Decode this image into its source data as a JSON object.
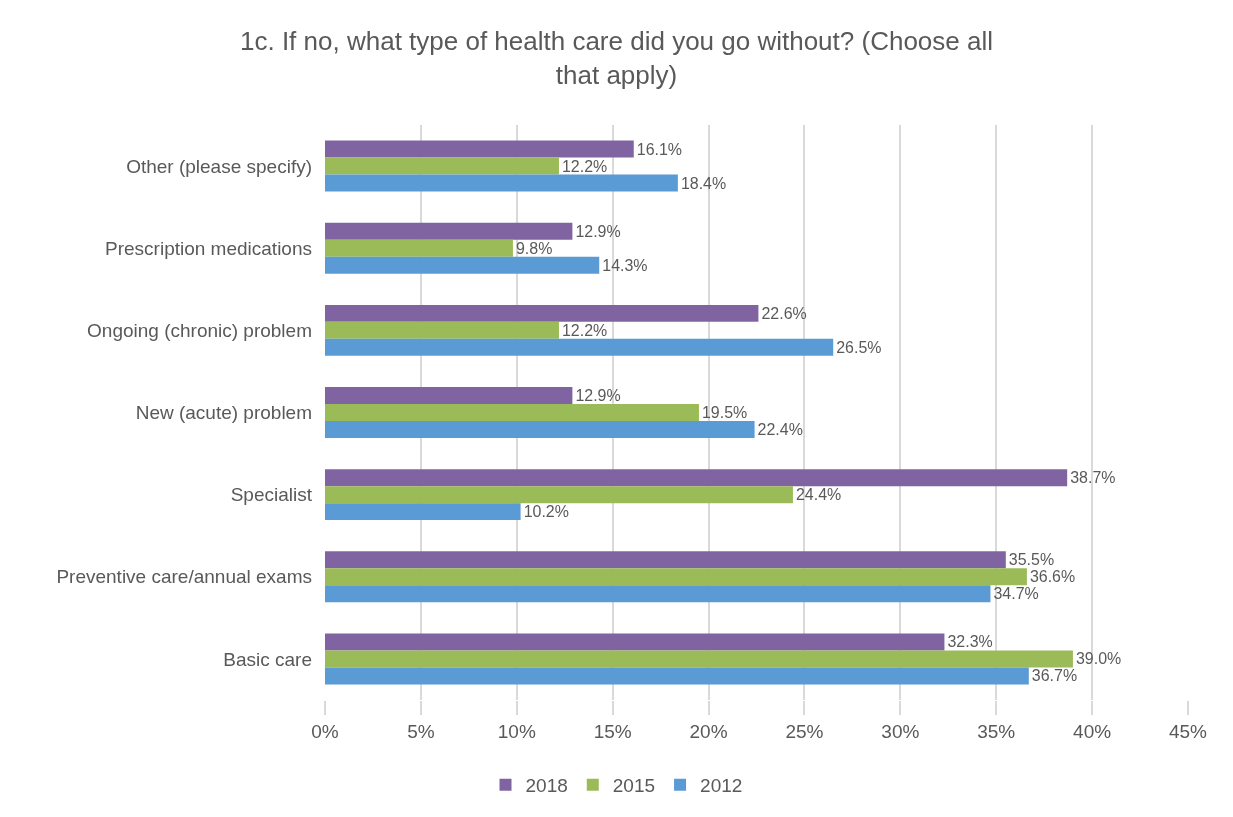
{
  "chart_data": {
    "type": "bar",
    "orientation": "horizontal",
    "title": "1c. If no, what type of health care did you go without? (Choose all that apply)",
    "categories": [
      "Other (please specify)",
      "Prescription medications",
      "Ongoing (chronic) problem",
      "New (acute) problem",
      "Specialist",
      "Preventive care/annual exams",
      "Basic care"
    ],
    "series": [
      {
        "name": "2018",
        "color": "#8064a2",
        "values": [
          16.1,
          12.9,
          22.6,
          12.9,
          38.7,
          35.5,
          32.3
        ],
        "value_labels": [
          "16.1%",
          "12.9%",
          "22.6%",
          "12.9%",
          "38.7%",
          "35.5%",
          "32.3%"
        ]
      },
      {
        "name": "2015",
        "color": "#9bbb59",
        "values": [
          12.2,
          9.8,
          12.2,
          19.5,
          24.4,
          36.6,
          39.0
        ],
        "value_labels": [
          "12.2%",
          "9.8%",
          "12.2%",
          "19.5%",
          "24.4%",
          "36.6%",
          "39.0%"
        ]
      },
      {
        "name": "2012",
        "color": "#5b9bd5",
        "values": [
          18.4,
          14.3,
          26.5,
          22.4,
          10.2,
          34.7,
          36.7
        ],
        "value_labels": [
          "18.4%",
          "14.3%",
          "26.5%",
          "22.4%",
          "10.2%",
          "34.7%",
          "36.7%"
        ]
      }
    ],
    "xlim": [
      0,
      45
    ],
    "xticks": [
      {
        "value": 0,
        "label": "0%"
      },
      {
        "value": 5,
        "label": "5%"
      },
      {
        "value": 10,
        "label": "10%"
      },
      {
        "value": 15,
        "label": "15%"
      },
      {
        "value": 20,
        "label": "20%"
      },
      {
        "value": 25,
        "label": "25%"
      },
      {
        "value": 30,
        "label": "30%"
      },
      {
        "value": 35,
        "label": "35%"
      },
      {
        "value": 40,
        "label": "40%"
      },
      {
        "value": 45,
        "label": "45%"
      }
    ],
    "grid": "x",
    "legend": "bottom"
  }
}
